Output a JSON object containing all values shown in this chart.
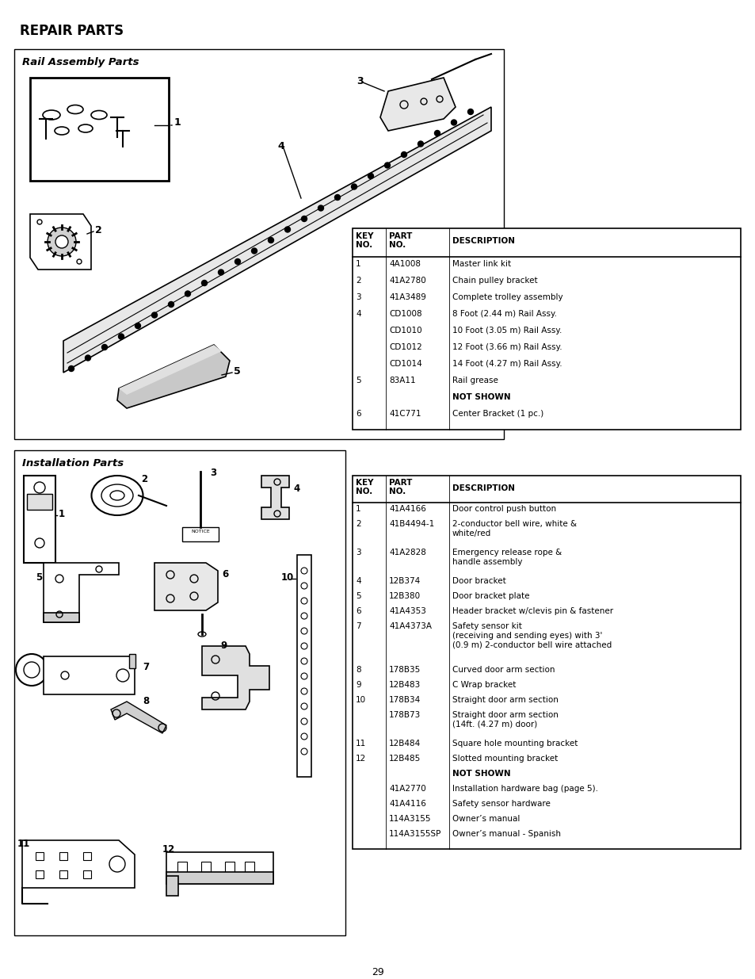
{
  "title": "REPAIR PARTS",
  "page_number": "29",
  "bg_color": "#ffffff",
  "section1_title": "Rail Assembly Parts",
  "section2_title": "Installation Parts",
  "rail_table_rows": [
    [
      "1",
      "4A1008",
      "Master link kit"
    ],
    [
      "2",
      "41A2780",
      "Chain pulley bracket"
    ],
    [
      "3",
      "41A3489",
      "Complete trolley assembly"
    ],
    [
      "4",
      "CD1008",
      "8 Foot (2.44 m) Rail Assy."
    ],
    [
      "",
      "CD1010",
      "10 Foot (3.05 m) Rail Assy."
    ],
    [
      "",
      "CD1012",
      "12 Foot (3.66 m) Rail Assy."
    ],
    [
      "",
      "CD1014",
      "14 Foot (4.27 m) Rail Assy."
    ],
    [
      "5",
      "83A11",
      "Rail grease"
    ],
    [
      "",
      "",
      "NOT SHOWN"
    ],
    [
      "6",
      "41C771",
      "Center Bracket (1 pc.)"
    ]
  ],
  "install_table_rows": [
    [
      "1",
      "41A4166",
      "Door control push button"
    ],
    [
      "2",
      "41B4494-1",
      "2-conductor bell wire, white &\nwhite/red"
    ],
    [
      "3",
      "41A2828",
      "Emergency release rope &\nhandle assembly"
    ],
    [
      "4",
      "12B374",
      "Door bracket"
    ],
    [
      "5",
      "12B380",
      "Door bracket plate"
    ],
    [
      "6",
      "41A4353",
      "Header bracket w/clevis pin & fastener"
    ],
    [
      "7",
      "41A4373A",
      "Safety sensor kit\n(receiving and sending eyes) with 3'\n(0.9 m) 2-conductor bell wire attached"
    ],
    [
      "8",
      "178B35",
      "Curved door arm section"
    ],
    [
      "9",
      "12B483",
      "C Wrap bracket"
    ],
    [
      "10",
      "178B34",
      "Straight door arm section"
    ],
    [
      "",
      "178B73",
      "Straight door arm section\n(14ft. (4.27 m) door)"
    ],
    [
      "11",
      "12B484",
      "Square hole mounting bracket"
    ],
    [
      "12",
      "12B485",
      "Slotted mounting bracket"
    ],
    [
      "",
      "",
      "NOT SHOWN"
    ],
    [
      "",
      "41A2770",
      "Installation hardware bag (page 5)."
    ],
    [
      "",
      "41A4116",
      "Safety sensor hardware"
    ],
    [
      "",
      "114A3155",
      "Owner’s manual"
    ],
    [
      "",
      "114A3155SP",
      "Owner’s manual - Spanish"
    ]
  ]
}
